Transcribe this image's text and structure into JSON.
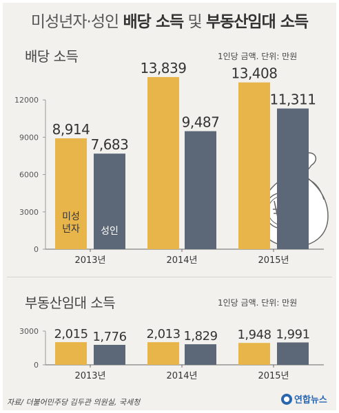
{
  "title": {
    "prefix": "미성년자·성인",
    "bold_part1": "배당 소득",
    "connector": "및",
    "bold_part2": "부동산임대 소득"
  },
  "colors": {
    "minor": "#e8b54a",
    "adult": "#5c6777",
    "axis": "#999999",
    "background": "#f2f1ee"
  },
  "chart_data": [
    {
      "type": "bar",
      "title": "배당 소득",
      "unit_note": "1인당 금액. 단위: 만원",
      "categories": [
        "2013년",
        "2014년",
        "2015년"
      ],
      "series": [
        {
          "name": "미성년자",
          "values": [
            8914,
            13839,
            13408
          ],
          "labels": [
            "8,914",
            "13,839",
            "13,408"
          ]
        },
        {
          "name": "성인",
          "values": [
            7683,
            9487,
            11311
          ],
          "labels": [
            "7,683",
            "9,487",
            "11,311"
          ]
        }
      ],
      "yticks": [
        "0",
        "3000",
        "6000",
        "9000",
        "12000"
      ],
      "ylim": [
        0,
        14500
      ],
      "series_labels_in_bars": [
        "미성\n년자",
        "성인"
      ],
      "decoration": "money-bag-icon"
    },
    {
      "type": "bar",
      "title": "부동산임대 소득",
      "unit_note": "1인당 금액. 단위: 만원",
      "categories": [
        "2013년",
        "2014년",
        "2015년"
      ],
      "series": [
        {
          "name": "미성년자",
          "values": [
            2015,
            2013,
            1948
          ],
          "labels": [
            "2,015",
            "2,013",
            "1,948"
          ]
        },
        {
          "name": "성인",
          "values": [
            1776,
            1829,
            1991
          ],
          "labels": [
            "1,776",
            "1,829",
            "1,991"
          ]
        }
      ],
      "yticks": [
        "0",
        "3000"
      ],
      "ylim": [
        0,
        3000
      ]
    }
  ],
  "source": "자료/ 더불어민주당 김두관 의원실, 국세청",
  "logo": "연합뉴스"
}
